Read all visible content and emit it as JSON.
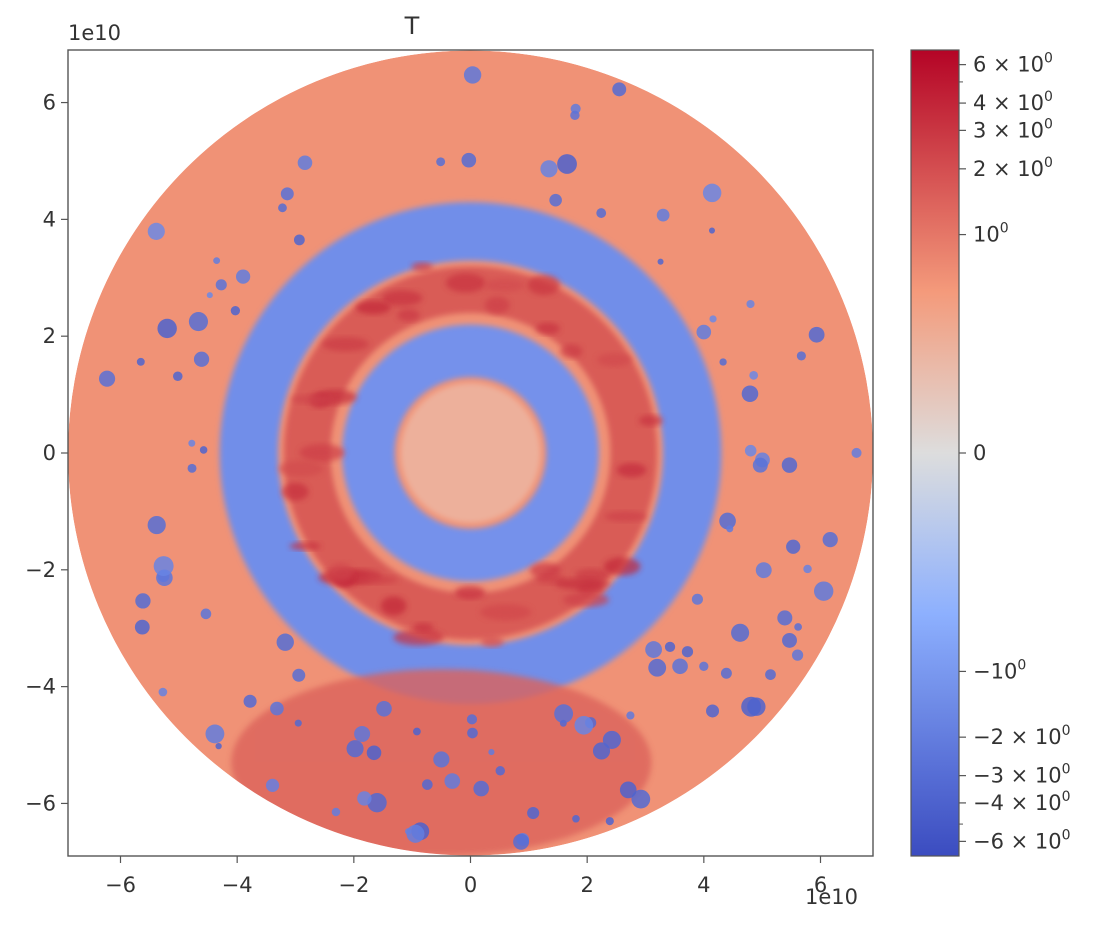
{
  "chart_data": {
    "type": "heatmap",
    "title": "T",
    "xlabel": "",
    "ylabel": "",
    "x_offset_text": "1e10",
    "y_offset_text": "1e10",
    "xlim": [
      -6.9,
      6.9
    ],
    "ylim": [
      -6.9,
      6.9
    ],
    "domain_radius": 6.9,
    "x_ticks": [
      {
        "value": -6,
        "label": "−6"
      },
      {
        "value": -4,
        "label": "−4"
      },
      {
        "value": -2,
        "label": "−2"
      },
      {
        "value": 0,
        "label": "0"
      },
      {
        "value": 2,
        "label": "2"
      },
      {
        "value": 4,
        "label": "4"
      },
      {
        "value": 6,
        "label": "6"
      }
    ],
    "y_ticks": [
      {
        "value": 6,
        "label": "6"
      },
      {
        "value": 4,
        "label": "4"
      },
      {
        "value": 2,
        "label": "2"
      },
      {
        "value": 0,
        "label": "0"
      },
      {
        "value": -2,
        "label": "−2"
      },
      {
        "value": -4,
        "label": "−4"
      },
      {
        "value": -6,
        "label": "−6"
      }
    ],
    "grid": false,
    "colormap": "coolwarm",
    "colorbar": {
      "scale": "symlog",
      "range": [
        -7,
        7
      ],
      "linthresh": 1,
      "ticks": [
        {
          "value": 6,
          "base": "6",
          "exp": "0"
        },
        {
          "value": 4,
          "base": "4",
          "exp": "0"
        },
        {
          "value": 3,
          "base": "3",
          "exp": "0"
        },
        {
          "value": 2,
          "base": "2",
          "exp": "0"
        },
        {
          "value": 1,
          "base": "",
          "exp": "0"
        },
        {
          "value": 0,
          "base": "",
          "exp": ""
        },
        {
          "value": -1,
          "base": "−",
          "exp": "0"
        },
        {
          "value": -2,
          "base": "−2",
          "exp": "0"
        },
        {
          "value": -3,
          "base": "−3",
          "exp": "0"
        },
        {
          "value": -4,
          "base": "−4",
          "exp": "0"
        },
        {
          "value": -6,
          "base": "−6",
          "exp": "0"
        }
      ],
      "colors": {
        "low": "#3b4cc0",
        "mid_low": "#8db0fe",
        "mid": "#dddddd",
        "mid_high": "#f49a7b",
        "high": "#b40426"
      }
    },
    "field_structure": [
      {
        "region": "outer ring (r 4.5–6.9)",
        "dominant": "warm",
        "value": 0.8
      },
      {
        "region": "blue band (r 3.3–4.3)",
        "dominant": "cool",
        "value": -1.3
      },
      {
        "region": "red band (r 2.4–3.2)",
        "dominant": "warm",
        "value": 1.6
      },
      {
        "region": "inner blue ring (r 1.3–2.2)",
        "dominant": "cool",
        "value": -1.2
      },
      {
        "region": "core (r < 1.2)",
        "dominant": "mixed",
        "value": 0.5
      },
      {
        "region": "south sector (y < -3.5)",
        "dominant": "warm",
        "value": 1.4
      }
    ]
  }
}
